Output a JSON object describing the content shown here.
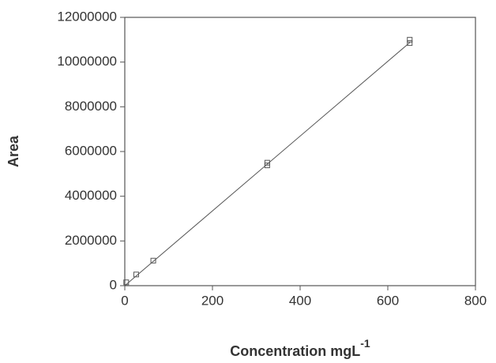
{
  "chart_data": {
    "type": "scatter",
    "xlabel": "Concentration mgL",
    "xlabel_superscript": "-1",
    "ylabel": "Area",
    "x": [
      3.25,
      26,
      65,
      325,
      325,
      650,
      650
    ],
    "values": [
      150000,
      500000,
      1120000,
      5500000,
      5380000,
      11000000,
      10850000
    ],
    "color": "#555555",
    "fit_line": {
      "x": [
        0,
        650
      ],
      "values": [
        0,
        10870000
      ],
      "color": "#555555"
    },
    "xlim": [
      0,
      800
    ],
    "xticks": [
      0,
      200,
      400,
      600,
      800
    ],
    "ylim": [
      0,
      12000000
    ],
    "yticks": [
      0,
      2000000,
      4000000,
      6000000,
      8000000,
      10000000,
      12000000
    ],
    "grid": false
  }
}
